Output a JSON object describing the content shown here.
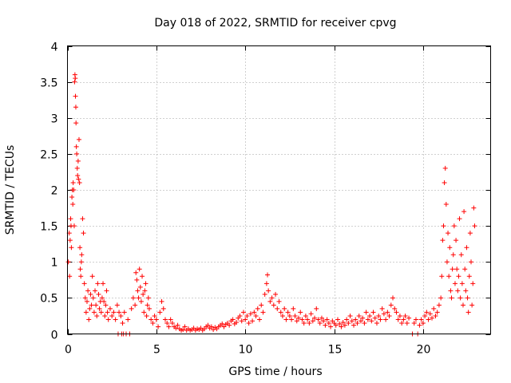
{
  "chart_data": {
    "type": "scatter",
    "title": "Day 018 of 2022, SRMTID for receiver cpvg",
    "xlabel": "GPS time / hours",
    "ylabel": "SRMTID / TECUs",
    "xlim": [
      0,
      23.8
    ],
    "ylim": [
      0,
      4
    ],
    "x_ticks": [
      0,
      5,
      10,
      15,
      20
    ],
    "y_ticks": [
      0,
      0.5,
      1,
      1.5,
      2,
      2.5,
      3,
      3.5,
      4
    ],
    "x_tick_labels": [
      "0",
      "5",
      "10",
      "15",
      "20"
    ],
    "y_tick_labels": [
      "0",
      "0.5",
      "1",
      "1.5",
      "2",
      "2.5",
      "3",
      "3.5",
      "4"
    ],
    "grid": true,
    "marker": "plus",
    "color": "#ff0000",
    "series": [
      {
        "name": "SRMTID",
        "points": [
          [
            0.05,
            1.0
          ],
          [
            0.1,
            1.4
          ],
          [
            0.12,
            0.8
          ],
          [
            0.15,
            1.3
          ],
          [
            0.18,
            1.6
          ],
          [
            0.2,
            1.5
          ],
          [
            0.22,
            1.2
          ],
          [
            0.25,
            1.9
          ],
          [
            0.28,
            2.0
          ],
          [
            0.3,
            1.8
          ],
          [
            0.32,
            2.1
          ],
          [
            0.35,
            2.0
          ],
          [
            0.38,
            1.5
          ],
          [
            0.4,
            3.5
          ],
          [
            0.42,
            3.6
          ],
          [
            0.44,
            3.55
          ],
          [
            0.45,
            3.3
          ],
          [
            0.47,
            3.15
          ],
          [
            0.48,
            2.93
          ],
          [
            0.5,
            2.6
          ],
          [
            0.52,
            2.5
          ],
          [
            0.55,
            2.3
          ],
          [
            0.57,
            2.2
          ],
          [
            0.6,
            2.4
          ],
          [
            0.62,
            2.15
          ],
          [
            0.65,
            2.7
          ],
          [
            0.68,
            2.1
          ],
          [
            0.7,
            1.2
          ],
          [
            0.72,
            0.9
          ],
          [
            0.75,
            0.8
          ],
          [
            0.78,
            1.0
          ],
          [
            0.8,
            1.1
          ],
          [
            0.85,
            1.6
          ],
          [
            0.9,
            1.4
          ],
          [
            0.95,
            0.7
          ],
          [
            1.0,
            0.5
          ],
          [
            1.05,
            0.3
          ],
          [
            1.1,
            0.45
          ],
          [
            1.15,
            0.6
          ],
          [
            1.2,
            0.2
          ],
          [
            1.25,
            0.35
          ],
          [
            1.3,
            0.55
          ],
          [
            1.35,
            0.4
          ],
          [
            1.4,
            0.8
          ],
          [
            1.45,
            0.5
          ],
          [
            1.5,
            0.3
          ],
          [
            1.55,
            0.6
          ],
          [
            1.6,
            0.4
          ],
          [
            1.65,
            0.25
          ],
          [
            1.7,
            0.7
          ],
          [
            1.75,
            0.55
          ],
          [
            1.8,
            0.35
          ],
          [
            1.85,
            0.45
          ],
          [
            1.9,
            0.3
          ],
          [
            1.95,
            0.5
          ],
          [
            2.0,
            0.7
          ],
          [
            2.05,
            0.45
          ],
          [
            2.1,
            0.25
          ],
          [
            2.15,
            0.4
          ],
          [
            2.2,
            0.6
          ],
          [
            2.25,
            0.3
          ],
          [
            2.3,
            0.2
          ],
          [
            2.4,
            0.35
          ],
          [
            2.5,
            0.25
          ],
          [
            2.6,
            0.3
          ],
          [
            2.7,
            0.2
          ],
          [
            2.8,
            0.4
          ],
          [
            2.9,
            0.3
          ],
          [
            3.0,
            0.25
          ],
          [
            3.1,
            0.15
          ],
          [
            2.85,
            0.0
          ],
          [
            3.05,
            0.0
          ],
          [
            3.15,
            0.0
          ],
          [
            3.3,
            0.0
          ],
          [
            3.5,
            0.0
          ],
          [
            3.2,
            0.3
          ],
          [
            3.4,
            0.2
          ],
          [
            3.6,
            0.35
          ],
          [
            3.7,
            0.5
          ],
          [
            3.8,
            0.4
          ],
          [
            3.85,
            0.85
          ],
          [
            3.9,
            0.75
          ],
          [
            3.95,
            0.6
          ],
          [
            4.0,
            0.5
          ],
          [
            4.05,
            0.9
          ],
          [
            4.1,
            0.65
          ],
          [
            4.15,
            0.45
          ],
          [
            4.2,
            0.8
          ],
          [
            4.25,
            0.55
          ],
          [
            4.3,
            0.3
          ],
          [
            4.35,
            0.6
          ],
          [
            4.4,
            0.7
          ],
          [
            4.45,
            0.25
          ],
          [
            4.5,
            0.4
          ],
          [
            4.55,
            0.5
          ],
          [
            4.6,
            0.35
          ],
          [
            4.7,
            0.2
          ],
          [
            4.8,
            0.15
          ],
          [
            4.9,
            0.25
          ],
          [
            5.0,
            0.2
          ],
          [
            5.1,
            0.1
          ],
          [
            5.2,
            0.3
          ],
          [
            5.3,
            0.45
          ],
          [
            5.4,
            0.35
          ],
          [
            5.5,
            0.2
          ],
          [
            5.6,
            0.15
          ],
          [
            5.7,
            0.1
          ],
          [
            5.8,
            0.2
          ],
          [
            5.9,
            0.15
          ],
          [
            6.0,
            0.1
          ],
          [
            6.1,
            0.08
          ],
          [
            6.2,
            0.12
          ],
          [
            6.3,
            0.07
          ],
          [
            6.4,
            0.05
          ],
          [
            6.5,
            0.06
          ],
          [
            6.6,
            0.1
          ],
          [
            6.7,
            0.05
          ],
          [
            6.8,
            0.07
          ],
          [
            6.9,
            0.05
          ],
          [
            7.0,
            0.06
          ],
          [
            7.1,
            0.08
          ],
          [
            7.2,
            0.05
          ],
          [
            7.3,
            0.07
          ],
          [
            7.4,
            0.06
          ],
          [
            7.5,
            0.08
          ],
          [
            7.6,
            0.05
          ],
          [
            7.7,
            0.07
          ],
          [
            7.8,
            0.1
          ],
          [
            7.9,
            0.12
          ],
          [
            8.0,
            0.08
          ],
          [
            8.1,
            0.1
          ],
          [
            8.2,
            0.06
          ],
          [
            8.3,
            0.09
          ],
          [
            8.4,
            0.07
          ],
          [
            8.5,
            0.1
          ],
          [
            8.6,
            0.12
          ],
          [
            8.7,
            0.14
          ],
          [
            8.8,
            0.1
          ],
          [
            8.9,
            0.13
          ],
          [
            9.0,
            0.15
          ],
          [
            9.1,
            0.12
          ],
          [
            9.2,
            0.18
          ],
          [
            9.3,
            0.2
          ],
          [
            9.4,
            0.14
          ],
          [
            9.5,
            0.16
          ],
          [
            9.6,
            0.22
          ],
          [
            9.7,
            0.25
          ],
          [
            9.8,
            0.18
          ],
          [
            9.9,
            0.3
          ],
          [
            10.0,
            0.2
          ],
          [
            10.1,
            0.25
          ],
          [
            10.2,
            0.15
          ],
          [
            10.3,
            0.28
          ],
          [
            10.4,
            0.18
          ],
          [
            10.5,
            0.3
          ],
          [
            10.6,
            0.25
          ],
          [
            10.7,
            0.35
          ],
          [
            10.8,
            0.2
          ],
          [
            10.9,
            0.4
          ],
          [
            11.0,
            0.3
          ],
          [
            11.1,
            0.55
          ],
          [
            11.2,
            0.7
          ],
          [
            11.25,
            0.82
          ],
          [
            11.3,
            0.6
          ],
          [
            11.4,
            0.45
          ],
          [
            11.5,
            0.5
          ],
          [
            11.6,
            0.4
          ],
          [
            11.7,
            0.55
          ],
          [
            11.8,
            0.35
          ],
          [
            11.9,
            0.45
          ],
          [
            12.0,
            0.3
          ],
          [
            12.1,
            0.25
          ],
          [
            12.2,
            0.35
          ],
          [
            12.3,
            0.2
          ],
          [
            12.4,
            0.3
          ],
          [
            12.5,
            0.25
          ],
          [
            12.6,
            0.2
          ],
          [
            12.7,
            0.35
          ],
          [
            12.8,
            0.25
          ],
          [
            12.9,
            0.18
          ],
          [
            13.0,
            0.22
          ],
          [
            13.1,
            0.3
          ],
          [
            13.2,
            0.2
          ],
          [
            13.3,
            0.15
          ],
          [
            13.4,
            0.25
          ],
          [
            13.5,
            0.2
          ],
          [
            13.6,
            0.15
          ],
          [
            13.7,
            0.28
          ],
          [
            13.8,
            0.18
          ],
          [
            13.9,
            0.22
          ],
          [
            14.0,
            0.35
          ],
          [
            14.1,
            0.2
          ],
          [
            14.2,
            0.15
          ],
          [
            14.3,
            0.22
          ],
          [
            14.4,
            0.18
          ],
          [
            14.5,
            0.12
          ],
          [
            14.6,
            0.2
          ],
          [
            14.7,
            0.15
          ],
          [
            14.8,
            0.1
          ],
          [
            14.9,
            0.18
          ],
          [
            15.0,
            0.15
          ],
          [
            15.1,
            0.12
          ],
          [
            15.2,
            0.2
          ],
          [
            15.3,
            0.14
          ],
          [
            15.4,
            0.1
          ],
          [
            15.5,
            0.16
          ],
          [
            15.6,
            0.12
          ],
          [
            15.7,
            0.2
          ],
          [
            15.8,
            0.15
          ],
          [
            15.9,
            0.25
          ],
          [
            16.0,
            0.18
          ],
          [
            16.1,
            0.12
          ],
          [
            16.2,
            0.2
          ],
          [
            16.3,
            0.15
          ],
          [
            16.4,
            0.25
          ],
          [
            16.5,
            0.18
          ],
          [
            16.6,
            0.22
          ],
          [
            16.7,
            0.15
          ],
          [
            16.8,
            0.3
          ],
          [
            16.9,
            0.2
          ],
          [
            17.0,
            0.25
          ],
          [
            17.1,
            0.18
          ],
          [
            17.2,
            0.3
          ],
          [
            17.3,
            0.22
          ],
          [
            17.4,
            0.15
          ],
          [
            17.5,
            0.25
          ],
          [
            17.6,
            0.2
          ],
          [
            17.7,
            0.35
          ],
          [
            17.8,
            0.28
          ],
          [
            17.9,
            0.2
          ],
          [
            18.0,
            0.3
          ],
          [
            18.1,
            0.25
          ],
          [
            18.2,
            0.4
          ],
          [
            18.3,
            0.5
          ],
          [
            18.4,
            0.35
          ],
          [
            18.5,
            0.3
          ],
          [
            18.6,
            0.2
          ],
          [
            18.7,
            0.25
          ],
          [
            18.8,
            0.15
          ],
          [
            18.9,
            0.2
          ],
          [
            19.0,
            0.25
          ],
          [
            19.1,
            0.15
          ],
          [
            19.2,
            0.22
          ],
          [
            19.4,
            0.0
          ],
          [
            19.7,
            0.0
          ],
          [
            19.5,
            0.15
          ],
          [
            19.6,
            0.2
          ],
          [
            19.8,
            0.12
          ],
          [
            19.9,
            0.2
          ],
          [
            20.0,
            0.15
          ],
          [
            20.1,
            0.25
          ],
          [
            20.2,
            0.3
          ],
          [
            20.3,
            0.2
          ],
          [
            20.4,
            0.28
          ],
          [
            20.5,
            0.22
          ],
          [
            20.6,
            0.35
          ],
          [
            20.7,
            0.25
          ],
          [
            20.8,
            0.3
          ],
          [
            20.9,
            0.4
          ],
          [
            21.0,
            0.5
          ],
          [
            21.05,
            0.8
          ],
          [
            21.1,
            1.3
          ],
          [
            21.15,
            1.5
          ],
          [
            21.2,
            2.1
          ],
          [
            21.25,
            2.3
          ],
          [
            21.3,
            1.8
          ],
          [
            21.35,
            1.0
          ],
          [
            21.4,
            1.4
          ],
          [
            21.45,
            0.8
          ],
          [
            21.5,
            1.2
          ],
          [
            21.55,
            0.6
          ],
          [
            21.6,
            0.5
          ],
          [
            21.65,
            0.9
          ],
          [
            21.7,
            1.1
          ],
          [
            21.75,
            1.5
          ],
          [
            21.8,
            0.7
          ],
          [
            21.85,
            1.3
          ],
          [
            21.9,
            0.9
          ],
          [
            21.95,
            0.6
          ],
          [
            22.0,
            0.8
          ],
          [
            22.05,
            1.6
          ],
          [
            22.1,
            0.5
          ],
          [
            22.15,
            1.1
          ],
          [
            22.2,
            0.7
          ],
          [
            22.25,
            0.4
          ],
          [
            22.3,
            1.7
          ],
          [
            22.35,
            0.9
          ],
          [
            22.4,
            0.6
          ],
          [
            22.45,
            1.2
          ],
          [
            22.5,
            0.5
          ],
          [
            22.55,
            0.3
          ],
          [
            22.6,
            0.8
          ],
          [
            22.65,
            1.4
          ],
          [
            22.7,
            1.0
          ],
          [
            22.75,
            0.4
          ],
          [
            22.8,
            0.7
          ],
          [
            22.85,
            1.75
          ],
          [
            22.9,
            1.5
          ]
        ]
      }
    ]
  }
}
